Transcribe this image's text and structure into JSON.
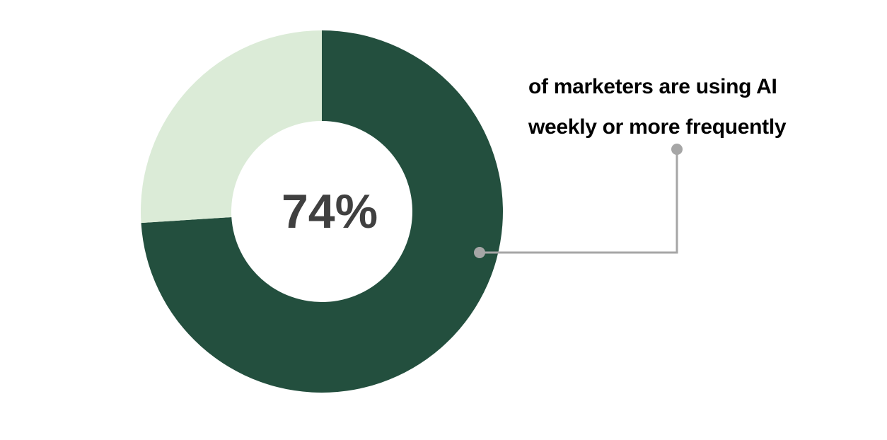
{
  "chart_data": {
    "type": "pie",
    "variant": "donut",
    "categories": [
      "using AI weekly or more frequently",
      "other"
    ],
    "values": [
      74,
      26
    ],
    "colors": [
      "#234F3E",
      "#DBEBD7"
    ],
    "center_label": "74%",
    "annotation": {
      "line1": "of marketers are using AI",
      "line2": "weekly or more frequently"
    },
    "connector_color": "#A6A6A6"
  }
}
